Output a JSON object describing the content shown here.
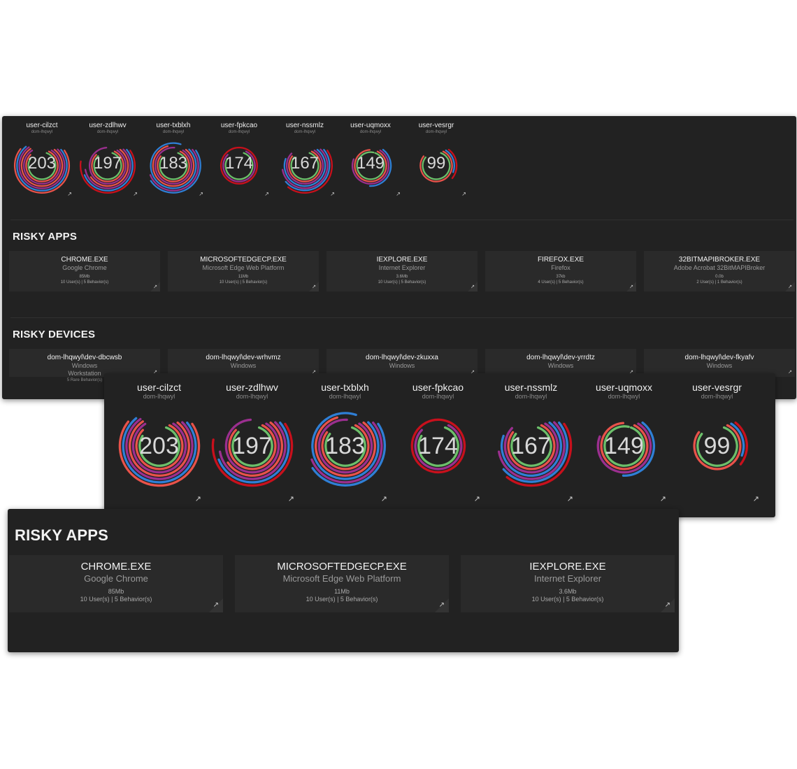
{
  "colors": {
    "panel_bg": "#222222",
    "tile_bg": "#2a2a2a",
    "ring_green": "#6cbf6a",
    "ring_red": "#e8524a",
    "ring_purple": "#9b2f8f",
    "ring_blue": "#2f7fd6",
    "ring_dark_red": "#c8101c",
    "ring_pink": "#d0456f"
  },
  "users": [
    {
      "name": "user-cilzct",
      "domain": "dom-lhqwyl",
      "score": "203",
      "rings": [
        [
          "green",
          0.78
        ],
        [
          "red",
          0.8
        ],
        [
          "purple",
          0.82
        ],
        [
          "red",
          0.8
        ],
        [
          "purple",
          0.78
        ],
        [
          "blue",
          0.75
        ],
        [
          "red",
          0.7
        ]
      ]
    },
    {
      "name": "user-zdlhwv",
      "domain": "dom-lhqwyl",
      "score": "197",
      "rings": [
        [
          "green",
          0.82
        ],
        [
          "red",
          0.8
        ],
        [
          "purple",
          0.9
        ],
        [
          "red",
          0.55
        ],
        [
          "purple",
          0.6
        ],
        [
          "blue",
          0.55
        ],
        [
          "dark_red",
          0.62
        ]
      ]
    },
    {
      "name": "user-txblxh",
      "domain": "dom-lhqwyl",
      "score": "183",
      "rings": [
        [
          "green",
          0.8
        ],
        [
          "red",
          0.78
        ],
        [
          "purple",
          0.92
        ],
        [
          "red",
          0.85
        ],
        [
          "blue",
          0.93
        ],
        [
          "purple",
          0.55
        ],
        [
          "blue",
          0.5
        ]
      ]
    },
    {
      "name": "user-fpkcao",
      "domain": "dom-lhqwyl",
      "score": "174",
      "rings": [
        [
          "green",
          0.78
        ],
        [
          "purple",
          0.8
        ],
        [
          "dark_red",
          1.0
        ]
      ]
    },
    {
      "name": "user-nssmlz",
      "domain": "dom-lhqwyl",
      "score": "167",
      "rings": [
        [
          "green",
          0.8
        ],
        [
          "red",
          0.78
        ],
        [
          "purple",
          0.78
        ],
        [
          "blue",
          0.7
        ],
        [
          "purple",
          0.6
        ],
        [
          "blue",
          0.5
        ],
        [
          "dark_red",
          0.45
        ]
      ]
    },
    {
      "name": "user-uqmoxx",
      "domain": "dom-lhqwyl",
      "score": "149",
      "rings": [
        [
          "green",
          0.98
        ],
        [
          "red",
          0.92
        ],
        [
          "purple",
          0.72
        ],
        [
          "blue",
          0.4
        ]
      ]
    },
    {
      "name": "user-vesrgr",
      "domain": "dom-lhqwyl",
      "score": "99",
      "rings": [
        [
          "green",
          0.8
        ],
        [
          "red",
          0.78
        ],
        [
          "blue",
          0.22
        ],
        [
          "dark_red",
          0.25
        ]
      ]
    }
  ],
  "risky_apps": {
    "title": "RISKY APPS",
    "items": [
      {
        "name": "CHROME.EXE",
        "vendor": "Google Chrome",
        "size": "85Mb",
        "stats": "10 User(s) | 5 Behavior(s)"
      },
      {
        "name": "MICROSOFTEDGECP.EXE",
        "vendor": "Microsoft Edge Web Platform",
        "size": "11Mb",
        "stats": "10 User(s) | 5 Behavior(s)"
      },
      {
        "name": "IEXPLORE.EXE",
        "vendor": "Internet Explorer",
        "size": "3.6Mb",
        "stats": "10 User(s) | 5 Behavior(s)"
      },
      {
        "name": "FIREFOX.EXE",
        "vendor": "Firefox",
        "size": "37kb",
        "stats": "4 User(s) | 5 Behavior(s)"
      },
      {
        "name": "32BITMAPIBROKER.EXE",
        "vendor": "Adobe Acrobat 32BitMAPIBroker",
        "size": "0.0b",
        "stats": "2 User(s) | 1 Behavior(s)"
      }
    ]
  },
  "risky_devices": {
    "title": "RISKY DEVICES",
    "items": [
      {
        "name": "dom-lhqwyl\\dev-dbcwsb",
        "os": "Windows",
        "type": "Workstation",
        "stats": "5 Rare Behavior(s)"
      },
      {
        "name": "dom-lhqwyl\\dev-wrhvmz",
        "os": "Windows",
        "type": "",
        "stats": ""
      },
      {
        "name": "dom-lhqwyl\\dev-zkuxxa",
        "os": "Windows",
        "type": "",
        "stats": ""
      },
      {
        "name": "dom-lhqwyl\\dev-yrrdtz",
        "os": "Windows",
        "type": "",
        "stats": ""
      },
      {
        "name": "dom-lhqwyl\\dev-fkyafv",
        "os": "Windows",
        "type": "",
        "stats": ""
      }
    ]
  },
  "external_link_icon": "external-link-icon"
}
